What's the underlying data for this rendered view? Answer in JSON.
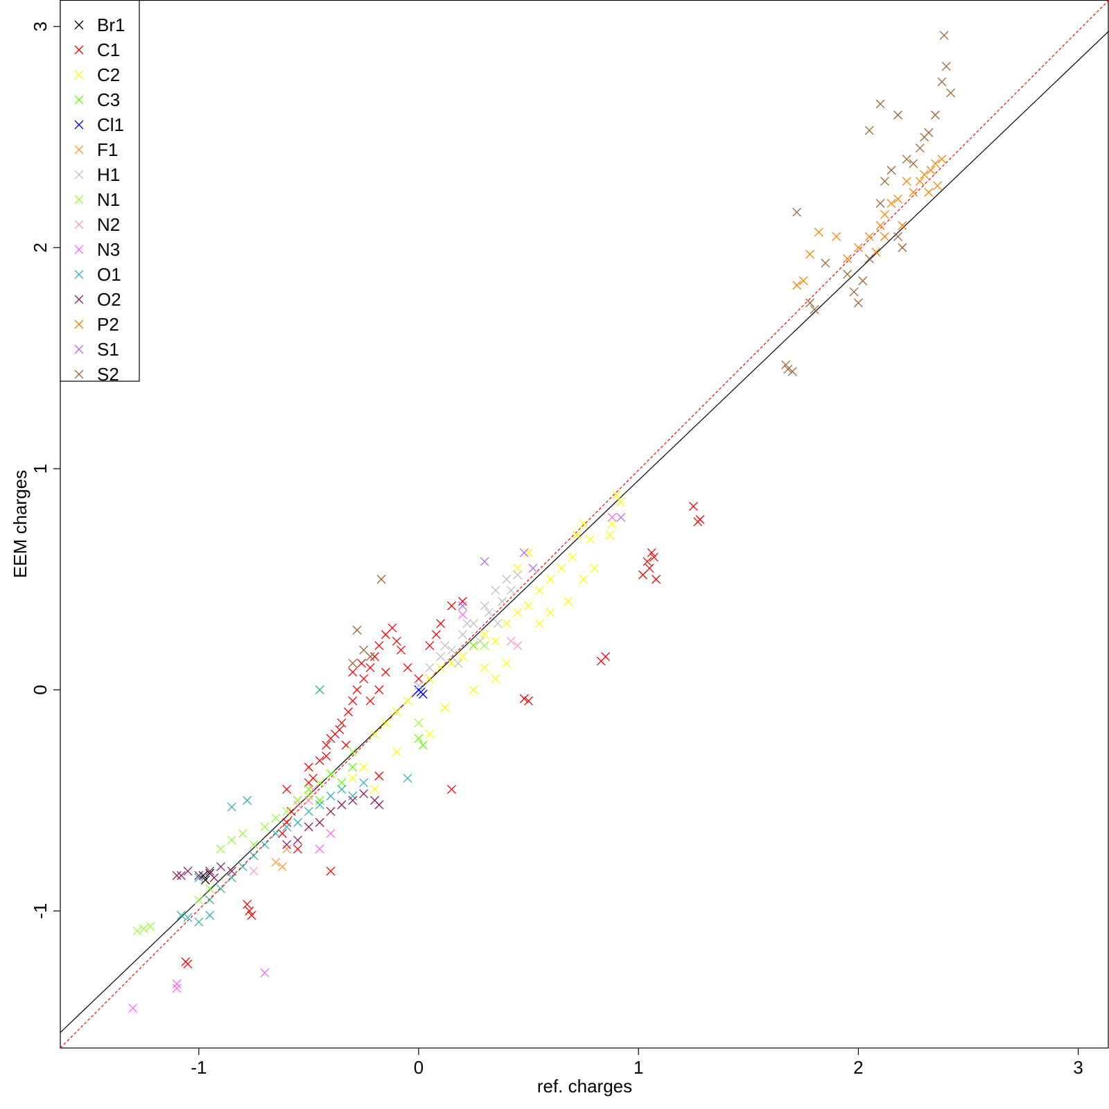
{
  "chart_data": {
    "type": "scatter",
    "title": "",
    "xlabel": "ref. charges",
    "ylabel": "EEM charges",
    "xlim": [
      -1.63,
      3.14
    ],
    "ylim": [
      -1.62,
      3.12
    ],
    "xticks": [
      "-1",
      "0",
      "1",
      "2",
      "3"
    ],
    "yticks": [
      "-1",
      "0",
      "1",
      "2",
      "3"
    ],
    "xtick_values": [
      -1,
      0,
      1,
      2,
      3
    ],
    "ytick_values": [
      -1,
      0,
      1,
      2,
      3
    ],
    "grid": false,
    "legend_position": "top-left",
    "marker": "x",
    "reference_lines": [
      {
        "style": "solid",
        "color": "#000000",
        "points": [
          [
            -1.63,
            -1.55
          ],
          [
            3.14,
            2.98
          ]
        ]
      },
      {
        "style": "dashed",
        "color": "#ff0000",
        "points": [
          [
            -1.63,
            -1.62
          ],
          [
            3.14,
            3.12
          ]
        ]
      }
    ],
    "series": [
      {
        "name": "Br1",
        "color": "#000000",
        "points": [
          [
            -0.98,
            -0.84
          ],
          [
            -0.97,
            -0.86
          ],
          [
            -0.95,
            -0.83
          ]
        ]
      },
      {
        "name": "C1",
        "color": "#ff0000",
        "points": [
          [
            -0.78,
            -0.97
          ],
          [
            -0.77,
            -1.0
          ],
          [
            -0.76,
            -1.02
          ],
          [
            -1.06,
            -1.23
          ],
          [
            -1.05,
            -1.24
          ],
          [
            -0.6,
            -0.6
          ],
          [
            -0.55,
            -0.5
          ],
          [
            -0.5,
            -0.42
          ],
          [
            -0.45,
            -0.32
          ],
          [
            -0.42,
            -0.25
          ],
          [
            -0.38,
            -0.2
          ],
          [
            -0.35,
            -0.15
          ],
          [
            -0.32,
            -0.1
          ],
          [
            -0.3,
            -0.05
          ],
          [
            -0.28,
            0.0
          ],
          [
            -0.25,
            0.05
          ],
          [
            -0.22,
            0.1
          ],
          [
            -0.2,
            0.15
          ],
          [
            -0.18,
            0.2
          ],
          [
            -0.15,
            0.25
          ],
          [
            -0.12,
            0.28
          ],
          [
            -0.1,
            0.22
          ],
          [
            -0.08,
            0.18
          ],
          [
            -0.05,
            0.1
          ],
          [
            0.0,
            0.05
          ],
          [
            0.05,
            0.2
          ],
          [
            0.08,
            0.25
          ],
          [
            0.1,
            0.3
          ],
          [
            0.15,
            0.38
          ],
          [
            0.2,
            0.4
          ],
          [
            -0.48,
            -0.4
          ],
          [
            -0.42,
            -0.3
          ],
          [
            -0.4,
            -0.22
          ],
          [
            -0.36,
            -0.18
          ],
          [
            -0.33,
            -0.25
          ],
          [
            -0.58,
            -0.55
          ],
          [
            -0.62,
            -0.65
          ],
          [
            -0.55,
            -0.72
          ],
          [
            -0.6,
            -0.45
          ],
          [
            -0.5,
            -0.35
          ],
          [
            -0.22,
            -0.05
          ],
          [
            -0.18,
            0.0
          ],
          [
            -0.15,
            0.08
          ],
          [
            -0.26,
            0.12
          ],
          [
            -0.3,
            0.08
          ],
          [
            0.48,
            -0.04
          ],
          [
            0.5,
            -0.05
          ],
          [
            0.15,
            -0.45
          ],
          [
            0.83,
            0.13
          ],
          [
            0.85,
            0.15
          ],
          [
            1.02,
            0.52
          ],
          [
            1.05,
            0.55
          ],
          [
            1.07,
            0.6
          ],
          [
            1.08,
            0.5
          ],
          [
            1.04,
            0.58
          ],
          [
            1.06,
            0.62
          ],
          [
            1.25,
            0.83
          ],
          [
            1.27,
            0.76
          ],
          [
            1.28,
            0.77
          ],
          [
            -0.4,
            -0.82
          ],
          [
            -0.18,
            -0.39
          ]
        ]
      },
      {
        "name": "C2",
        "color": "#ffff00",
        "points": [
          [
            -0.2,
            -0.2
          ],
          [
            -0.15,
            -0.15
          ],
          [
            -0.1,
            -0.1
          ],
          [
            -0.05,
            -0.05
          ],
          [
            0.0,
            0.0
          ],
          [
            0.05,
            0.05
          ],
          [
            0.1,
            0.1
          ],
          [
            0.15,
            0.12
          ],
          [
            0.2,
            0.15
          ],
          [
            0.25,
            0.2
          ],
          [
            0.3,
            0.25
          ],
          [
            0.35,
            0.22
          ],
          [
            0.4,
            0.3
          ],
          [
            0.45,
            0.35
          ],
          [
            0.5,
            0.38
          ],
          [
            0.55,
            0.45
          ],
          [
            0.6,
            0.5
          ],
          [
            0.65,
            0.55
          ],
          [
            0.7,
            0.6
          ],
          [
            0.72,
            0.7
          ],
          [
            0.75,
            0.75
          ],
          [
            0.78,
            0.68
          ],
          [
            0.8,
            0.55
          ],
          [
            0.6,
            0.35
          ],
          [
            0.55,
            0.3
          ],
          [
            0.4,
            0.12
          ],
          [
            0.35,
            0.05
          ],
          [
            0.3,
            0.1
          ],
          [
            0.25,
            0.0
          ],
          [
            0.12,
            -0.08
          ],
          [
            -0.25,
            -0.35
          ],
          [
            -0.3,
            -0.4
          ],
          [
            -0.2,
            -0.45
          ],
          [
            -0.1,
            -0.28
          ],
          [
            0.05,
            -0.2
          ],
          [
            0.87,
            0.7
          ],
          [
            0.88,
            0.75
          ],
          [
            0.9,
            0.88
          ],
          [
            0.92,
            0.85
          ],
          [
            -0.45,
            -0.6
          ],
          [
            -0.4,
            -0.55
          ],
          [
            0.68,
            0.4
          ],
          [
            0.75,
            0.5
          ],
          [
            0.5,
            0.62
          ],
          [
            0.45,
            0.55
          ]
        ]
      },
      {
        "name": "C3",
        "color": "#66ff00",
        "points": [
          [
            -0.5,
            -0.45
          ],
          [
            -0.45,
            -0.5
          ],
          [
            -0.4,
            -0.38
          ],
          [
            -0.35,
            -0.42
          ],
          [
            -0.3,
            -0.35
          ],
          [
            0.0,
            -0.22
          ],
          [
            0.02,
            -0.25
          ],
          [
            0.25,
            0.2
          ],
          [
            -0.45,
            0.0
          ]
        ]
      },
      {
        "name": "Cl1",
        "color": "#0000ff",
        "points": [
          [
            0.0,
            0.0
          ],
          [
            0.02,
            -0.02
          ],
          [
            0.01,
            -0.01
          ]
        ]
      },
      {
        "name": "F1",
        "color": "#ff9933",
        "points": [
          [
            -0.65,
            -0.78
          ],
          [
            -0.6,
            -0.72
          ],
          [
            -0.62,
            -0.8
          ]
        ]
      },
      {
        "name": "H1",
        "color": "#bfbfbf",
        "points": [
          [
            0.0,
            0.02
          ],
          [
            0.05,
            0.1
          ],
          [
            0.1,
            0.15
          ],
          [
            0.15,
            0.18
          ],
          [
            0.2,
            0.25
          ],
          [
            0.25,
            0.3
          ],
          [
            0.3,
            0.38
          ],
          [
            0.35,
            0.45
          ],
          [
            0.4,
            0.5
          ],
          [
            0.45,
            0.52
          ],
          [
            0.28,
            0.22
          ],
          [
            0.32,
            0.35
          ],
          [
            0.38,
            0.4
          ],
          [
            0.12,
            0.2
          ],
          [
            0.22,
            0.3
          ],
          [
            0.42,
            0.45
          ],
          [
            0.36,
            0.3
          ],
          [
            0.18,
            0.12
          ]
        ]
      },
      {
        "name": "N1",
        "color": "#99ff33",
        "points": [
          [
            -0.9,
            -0.72
          ],
          [
            -0.85,
            -0.68
          ],
          [
            -0.8,
            -0.65
          ],
          [
            -0.75,
            -0.7
          ],
          [
            -0.7,
            -0.62
          ],
          [
            -0.65,
            -0.58
          ],
          [
            -0.6,
            -0.55
          ],
          [
            -0.55,
            -0.5
          ],
          [
            -0.5,
            -0.48
          ],
          [
            -0.45,
            -0.42
          ],
          [
            -1.25,
            -1.08
          ],
          [
            -1.22,
            -1.07
          ],
          [
            -1.28,
            -1.09
          ],
          [
            -1.0,
            -0.95
          ],
          [
            -0.95,
            -0.9
          ],
          [
            -0.3,
            -0.28
          ],
          [
            0.3,
            0.2
          ],
          [
            0.0,
            -0.15
          ]
        ]
      },
      {
        "name": "N2",
        "color": "#ff99cc",
        "points": [
          [
            -0.55,
            -0.52
          ],
          [
            -0.5,
            -0.5
          ],
          [
            -0.48,
            -0.45
          ],
          [
            -0.8,
            -0.8
          ],
          [
            -0.75,
            -0.82
          ],
          [
            0.45,
            0.2
          ],
          [
            0.42,
            0.22
          ]
        ]
      },
      {
        "name": "N3",
        "color": "#ff66ff",
        "points": [
          [
            -0.7,
            -1.28
          ],
          [
            -1.1,
            -1.33
          ],
          [
            -1.1,
            -1.35
          ],
          [
            -1.3,
            -1.44
          ],
          [
            -0.45,
            -0.72
          ],
          [
            -0.4,
            -0.65
          ],
          [
            0.88,
            0.78
          ],
          [
            0.2,
            0.34
          ]
        ]
      },
      {
        "name": "O1",
        "color": "#33b3b3",
        "points": [
          [
            -1.05,
            -1.03
          ],
          [
            -1.0,
            -1.05
          ],
          [
            -0.95,
            -0.95
          ],
          [
            -0.9,
            -0.9
          ],
          [
            -0.85,
            -0.85
          ],
          [
            -0.8,
            -0.8
          ],
          [
            -0.75,
            -0.75
          ],
          [
            -0.7,
            -0.7
          ],
          [
            -0.65,
            -0.65
          ],
          [
            -0.6,
            -0.62
          ],
          [
            -0.55,
            -0.6
          ],
          [
            -0.5,
            -0.55
          ],
          [
            -0.45,
            -0.52
          ],
          [
            -0.4,
            -0.48
          ],
          [
            -0.35,
            -0.45
          ],
          [
            -0.3,
            -0.48
          ],
          [
            -0.25,
            -0.42
          ],
          [
            -1.08,
            -1.02
          ],
          [
            -0.95,
            -1.02
          ],
          [
            -1.0,
            -0.85
          ],
          [
            -0.85,
            -0.53
          ],
          [
            -0.78,
            -0.5
          ],
          [
            -0.45,
            0.0
          ],
          [
            -0.05,
            -0.4
          ]
        ]
      },
      {
        "name": "O2",
        "color": "#8c1a66",
        "points": [
          [
            -1.1,
            -0.84
          ],
          [
            -1.05,
            -0.82
          ],
          [
            -1.0,
            -0.84
          ],
          [
            -0.95,
            -0.82
          ],
          [
            -0.9,
            -0.8
          ],
          [
            -0.85,
            -0.82
          ],
          [
            -0.5,
            -0.62
          ],
          [
            -0.45,
            -0.6
          ],
          [
            -0.4,
            -0.55
          ],
          [
            -0.35,
            -0.52
          ],
          [
            -0.3,
            -0.5
          ],
          [
            -0.25,
            -0.47
          ],
          [
            -0.2,
            -0.5
          ],
          [
            -0.55,
            -0.68
          ],
          [
            -0.6,
            -0.7
          ],
          [
            -0.18,
            -0.52
          ],
          [
            -1.08,
            -0.84
          ],
          [
            -0.93,
            -0.85
          ]
        ]
      },
      {
        "name": "P2",
        "color": "#ff8000",
        "points": [
          [
            1.72,
            1.83
          ],
          [
            1.75,
            1.85
          ],
          [
            1.78,
            1.97
          ],
          [
            1.82,
            2.07
          ],
          [
            1.9,
            2.05
          ],
          [
            1.95,
            1.95
          ],
          [
            2.0,
            2.0
          ],
          [
            2.05,
            2.05
          ],
          [
            2.1,
            2.1
          ],
          [
            2.12,
            2.15
          ],
          [
            2.15,
            2.2
          ],
          [
            2.18,
            2.22
          ],
          [
            2.2,
            2.1
          ],
          [
            2.25,
            2.25
          ],
          [
            2.28,
            2.3
          ],
          [
            2.3,
            2.33
          ],
          [
            2.33,
            2.35
          ],
          [
            2.35,
            2.38
          ],
          [
            2.38,
            2.4
          ],
          [
            2.36,
            2.28
          ],
          [
            2.32,
            2.25
          ],
          [
            2.12,
            2.05
          ],
          [
            2.08,
            1.98
          ],
          [
            2.22,
            2.3
          ]
        ]
      },
      {
        "name": "S1",
        "color": "#b366ff",
        "points": [
          [
            0.3,
            0.58
          ],
          [
            0.48,
            0.62
          ],
          [
            0.52,
            0.55
          ],
          [
            0.2,
            0.38
          ],
          [
            0.92,
            0.78
          ]
        ]
      },
      {
        "name": "S2",
        "color": "#996633",
        "points": [
          [
            1.67,
            1.47
          ],
          [
            1.68,
            1.45
          ],
          [
            1.7,
            1.44
          ],
          [
            1.72,
            2.16
          ],
          [
            1.78,
            1.75
          ],
          [
            1.8,
            1.72
          ],
          [
            1.85,
            1.93
          ],
          [
            1.95,
            1.88
          ],
          [
            1.98,
            1.8
          ],
          [
            2.0,
            1.75
          ],
          [
            2.02,
            1.85
          ],
          [
            2.05,
            1.95
          ],
          [
            2.1,
            2.2
          ],
          [
            2.12,
            2.3
          ],
          [
            2.15,
            2.35
          ],
          [
            2.18,
            2.05
          ],
          [
            2.2,
            2.0
          ],
          [
            2.22,
            2.4
          ],
          [
            2.25,
            2.38
          ],
          [
            2.28,
            2.45
          ],
          [
            2.3,
            2.5
          ],
          [
            2.32,
            2.52
          ],
          [
            2.35,
            2.6
          ],
          [
            2.38,
            2.75
          ],
          [
            2.4,
            2.82
          ],
          [
            2.42,
            2.7
          ],
          [
            2.39,
            2.96
          ],
          [
            2.1,
            2.65
          ],
          [
            2.18,
            2.6
          ],
          [
            2.05,
            2.53
          ],
          [
            -0.28,
            0.27
          ],
          [
            -0.25,
            0.18
          ],
          [
            -0.22,
            0.15
          ],
          [
            -0.3,
            0.12
          ],
          [
            -0.17,
            0.5
          ]
        ]
      }
    ]
  }
}
